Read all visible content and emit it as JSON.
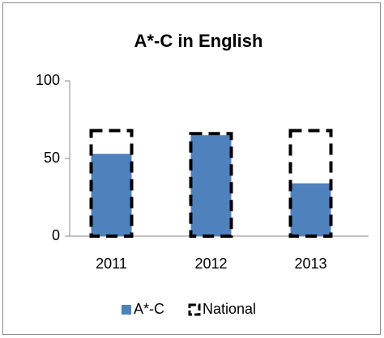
{
  "chart_data": {
    "type": "bar",
    "title": "A*-C in English",
    "categories": [
      "2011",
      "2012",
      "2013"
    ],
    "series": [
      {
        "name": "A*-C",
        "color": "#4f81bd",
        "values": [
          53,
          65,
          34
        ]
      },
      {
        "name": "National",
        "color": "#000000",
        "values": [
          68,
          66,
          68
        ]
      }
    ],
    "ylim": [
      0,
      100
    ],
    "yticks": [
      0,
      50,
      100
    ],
    "grid": false,
    "legend": "bottom"
  }
}
